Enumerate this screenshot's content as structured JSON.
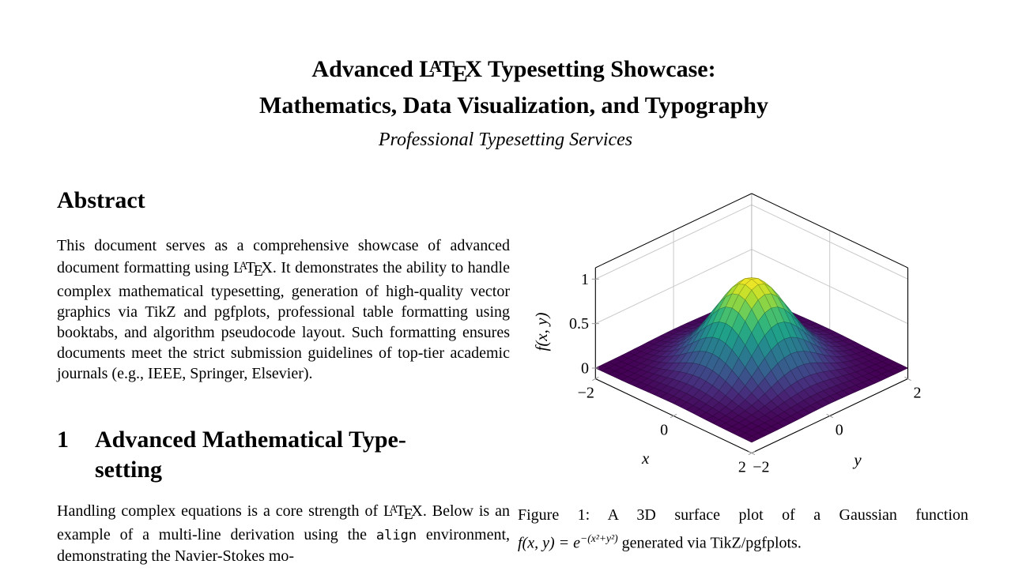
{
  "document": {
    "title_line1": "Advanced {latex} Typesetting Showcase:",
    "title_line2": "Mathematics, Data Visualization, and Typography",
    "author": "Professional Typesetting Services",
    "abstract": {
      "heading": "Abstract",
      "body": "This document serves as a comprehensive showcase of advanced document formatting using {latex}. It demonstrates the ability to handle complex mathematical typesetting, generation of high-quality vector graphics via TikZ and pgfplots, professional table formatting using booktabs, and algorithm pseudocode layout. Such formatting ensures documents meet the strict submission guidelines of top-tier academic journals (e.g., IEEE, Springer, Elsevier)."
    },
    "section1": {
      "number": "1",
      "title": "Advanced Mathematical Type­setting",
      "body": "Handling complex equations is a core strength of {latex}. Below is an example of a multi-line derivation using the {tt:align} environment, demonstrating the Navier-Stokes mo-"
    },
    "figure1": {
      "caption_line1": "Figure 1: A 3D surface plot of a Gaussian function",
      "caption_math": "f(x, y) = e",
      "caption_exponent": "−(x²+y²)",
      "caption_tail": " generated via TikZ/pgfplots."
    }
  },
  "chart_data": {
    "type": "surface",
    "title": "3D surface plot of a Gaussian function",
    "formula": "f(x,y) = exp(-(x^2 + y^2))",
    "function_id": "gaussian",
    "x_range": [
      -2,
      2
    ],
    "y_range": [
      -2,
      2
    ],
    "z_range": [
      0,
      1
    ],
    "samples": 25,
    "xlabel": "x",
    "ylabel": "y",
    "zlabel": "f(x, y)",
    "x_ticks": [
      {
        "v": -2,
        "label": "−2"
      },
      {
        "v": 0,
        "label": "0"
      },
      {
        "v": 2,
        "label": "2"
      }
    ],
    "y_ticks": [
      {
        "v": -2,
        "label": "−2"
      },
      {
        "v": 0,
        "label": "0"
      },
      {
        "v": 2,
        "label": "2"
      }
    ],
    "z_ticks": [
      {
        "v": 0,
        "label": "0"
      },
      {
        "v": 0.5,
        "label": "0.5"
      },
      {
        "v": 1,
        "label": "1"
      }
    ],
    "grid": true,
    "legend": "none",
    "view": "pgfplots default 3D view, azimuth 25, elevation 30",
    "colormap": "viridis",
    "colormap_stops": [
      "#440154",
      "#482878",
      "#3e4a89",
      "#31688e",
      "#26828e",
      "#1f9e89",
      "#35b779",
      "#6dcd59",
      "#b4de2c",
      "#fde725"
    ],
    "wall_grid_x_values": [
      0
    ],
    "wall_grid_y_values": [
      0
    ],
    "x_grid_values": [
      -2,
      -1.5,
      -1,
      -0.5,
      0,
      0.5,
      1,
      1.5,
      2
    ],
    "y_grid_values": [
      -2,
      -1.5,
      -1,
      -0.5,
      0,
      0.5,
      1,
      1.5,
      2
    ],
    "z_matrix": [
      [
        0.0003,
        0.0019,
        0.0067,
        0.0143,
        0.0183,
        0.0143,
        0.0067,
        0.0019,
        0.0003
      ],
      [
        0.0019,
        0.0111,
        0.0388,
        0.0821,
        0.1054,
        0.0821,
        0.0388,
        0.0111,
        0.0019
      ],
      [
        0.0067,
        0.0388,
        0.1353,
        0.2865,
        0.3679,
        0.2865,
        0.1353,
        0.0388,
        0.0067
      ],
      [
        0.0143,
        0.0821,
        0.2865,
        0.6065,
        0.7788,
        0.6065,
        0.2865,
        0.0821,
        0.0143
      ],
      [
        0.0183,
        0.1054,
        0.3679,
        0.7788,
        1.0,
        0.7788,
        0.3679,
        0.1054,
        0.0183
      ],
      [
        0.0143,
        0.0821,
        0.2865,
        0.6065,
        0.7788,
        0.6065,
        0.2865,
        0.0821,
        0.0143
      ],
      [
        0.0067,
        0.0388,
        0.1353,
        0.2865,
        0.3679,
        0.2865,
        0.1353,
        0.0388,
        0.0067
      ],
      [
        0.0019,
        0.0111,
        0.0388,
        0.0821,
        0.1054,
        0.0821,
        0.0388,
        0.0111,
        0.0019
      ],
      [
        0.0003,
        0.0019,
        0.0067,
        0.0143,
        0.0183,
        0.0143,
        0.0067,
        0.0019,
        0.0003
      ]
    ]
  }
}
